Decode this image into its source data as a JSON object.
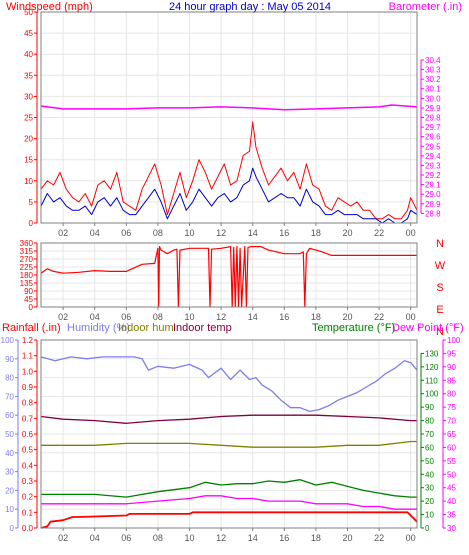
{
  "title": "24 hour graph day : May 05 2014",
  "x_ticks": [
    "02",
    "04",
    "06",
    "08",
    "10",
    "12",
    "14",
    "16",
    "18",
    "20",
    "22",
    "00"
  ],
  "colors": {
    "axis": "#808080",
    "grid": "#e6e6e6",
    "wind": "#ff0000",
    "gust_avg": "#0000cc",
    "barometer": "#ff00ff",
    "direction": "#ff0000",
    "rain": "#ff0000",
    "humidity": "#7d7dee",
    "indoor_hum": "#808000",
    "indoor_temp": "#800040",
    "temperature": "#008000",
    "dewpoint": "#ff00ff",
    "wind_dir_marker": "#ffff00"
  },
  "chart_data": [
    {
      "type": "line",
      "title": "24 hour graph day : May 05 2014",
      "x_range": [
        0.6,
        24.4
      ],
      "x_ticks": [
        2,
        4,
        6,
        8,
        10,
        12,
        14,
        16,
        18,
        20,
        22,
        24
      ],
      "left_axis": {
        "label": "Windspeed (mph)",
        "range": [
          0,
          50
        ],
        "ticks": [
          0,
          5,
          10,
          15,
          20,
          25,
          30,
          35,
          40,
          45,
          50
        ]
      },
      "right_axis": {
        "label": "Barometer (.in)",
        "range": [
          28.7,
          30.9
        ],
        "ticks": [
          28.8,
          28.9,
          29.0,
          29.1,
          29.2,
          29.3,
          29.4,
          29.5,
          29.6,
          29.7,
          29.8,
          29.9,
          30.0,
          30.1,
          30.2,
          30.3,
          30.4
        ]
      },
      "series": [
        {
          "name": "Windspeed",
          "axis": "left",
          "color": "#ff0000",
          "x": [
            0.6,
            1.0,
            1.4,
            1.8,
            2.2,
            2.6,
            3.0,
            3.4,
            3.8,
            4.2,
            4.6,
            5.0,
            5.4,
            5.8,
            6.2,
            6.6,
            7.0,
            7.4,
            7.8,
            8.2,
            8.6,
            9.0,
            9.4,
            9.8,
            10.2,
            10.6,
            11.0,
            11.4,
            11.8,
            12.2,
            12.6,
            13.0,
            13.4,
            13.8,
            14.0,
            14.2,
            14.6,
            15.0,
            15.4,
            15.8,
            16.2,
            16.6,
            17.0,
            17.4,
            17.8,
            18.2,
            18.6,
            19.0,
            19.4,
            19.8,
            20.2,
            20.6,
            21.0,
            21.4,
            21.8,
            22.2,
            22.6,
            23.0,
            23.4,
            23.8,
            24.0,
            24.4
          ],
          "y": [
            8,
            10,
            9,
            12,
            8,
            6,
            5,
            7,
            4,
            9,
            10,
            8,
            12,
            5,
            4,
            3,
            8,
            11,
            14,
            9,
            2,
            7,
            12,
            6,
            10,
            15,
            12,
            8,
            11,
            14,
            9,
            10,
            16,
            17,
            24,
            18,
            13,
            9,
            11,
            13,
            10,
            12,
            8,
            14,
            9,
            8,
            4,
            3,
            6,
            5,
            4,
            5,
            3,
            3,
            1,
            1,
            2,
            1,
            1,
            3,
            6,
            3
          ]
        },
        {
          "name": "Gust average",
          "axis": "left",
          "color": "#0000cc",
          "x": [
            0.6,
            1.0,
            1.4,
            1.8,
            2.2,
            2.6,
            3.0,
            3.4,
            3.8,
            4.2,
            4.6,
            5.0,
            5.4,
            5.8,
            6.2,
            6.6,
            7.0,
            7.4,
            7.8,
            8.2,
            8.6,
            9.0,
            9.4,
            9.8,
            10.2,
            10.6,
            11.0,
            11.4,
            11.8,
            12.2,
            12.6,
            13.0,
            13.4,
            13.8,
            14.0,
            14.2,
            14.6,
            15.0,
            15.4,
            15.8,
            16.2,
            16.6,
            17.0,
            17.4,
            17.8,
            18.2,
            18.6,
            19.0,
            19.4,
            19.8,
            20.2,
            20.6,
            21.0,
            21.4,
            21.8,
            22.2,
            22.6,
            23.0,
            23.4,
            23.8,
            24.0,
            24.4
          ],
          "y": [
            4,
            7,
            5,
            6,
            4,
            3,
            3,
            4,
            2,
            5,
            6,
            4,
            6,
            3,
            2,
            2,
            4,
            6,
            8,
            5,
            1,
            4,
            7,
            3,
            5,
            8,
            6,
            4,
            6,
            7,
            5,
            6,
            9,
            10,
            13,
            11,
            8,
            5,
            6,
            7,
            6,
            6,
            4,
            8,
            5,
            4,
            2,
            2,
            3,
            2,
            2,
            2,
            1,
            1,
            1,
            0,
            1,
            0,
            0,
            1,
            3,
            2
          ]
        },
        {
          "name": "Barometer",
          "axis": "right",
          "color": "#ff00ff",
          "x": [
            0.6,
            2,
            4,
            6,
            8,
            10,
            12,
            14,
            16,
            18,
            20,
            22,
            22.8,
            24.4
          ],
          "y": [
            29.92,
            29.89,
            29.89,
            29.89,
            29.9,
            29.9,
            29.91,
            29.9,
            29.88,
            29.89,
            29.9,
            29.91,
            29.93,
            29.91
          ]
        }
      ]
    },
    {
      "type": "line",
      "x_range": [
        0.6,
        24.4
      ],
      "x_ticks": [
        2,
        4,
        6,
        8,
        10,
        12,
        14,
        16,
        18,
        20,
        22,
        24
      ],
      "left_axis": {
        "label": "",
        "range": [
          0,
          360
        ],
        "ticks": [
          0,
          45,
          90,
          135,
          180,
          225,
          270,
          315,
          360
        ]
      },
      "right_axis": {
        "label": "",
        "range": [
          0,
          360
        ],
        "ticks": [
          360,
          270,
          180,
          90,
          0
        ],
        "tick_labels": [
          "N",
          "W",
          "S",
          "E",
          "N"
        ]
      },
      "series": [
        {
          "name": "Wind direction",
          "color": "#ff0000",
          "x": [
            0.6,
            1.0,
            1.4,
            2.0,
            3.0,
            4.0,
            5.0,
            6.0,
            7.0,
            7.8,
            8.0,
            8.05,
            8.1,
            8.2,
            8.6,
            9.0,
            9.2,
            9.3,
            9.4,
            10.0,
            11.0,
            11.2,
            11.3,
            11.4,
            12.0,
            12.6,
            12.7,
            12.8,
            12.9,
            13.0,
            13.1,
            13.2,
            13.3,
            13.5,
            13.6,
            13.7,
            13.9,
            14.5,
            15.0,
            16.0,
            17.0,
            17.2,
            17.3,
            17.4,
            17.6,
            18.0,
            18.4,
            19.0,
            24.4
          ],
          "y": [
            190,
            215,
            200,
            190,
            195,
            205,
            200,
            200,
            240,
            245,
            330,
            0,
            340,
            320,
            300,
            320,
            325,
            0,
            320,
            330,
            330,
            330,
            0,
            325,
            330,
            340,
            0,
            335,
            0,
            340,
            0,
            330,
            0,
            340,
            0,
            335,
            340,
            340,
            320,
            300,
            300,
            310,
            0,
            300,
            330,
            320,
            310,
            290,
            290
          ]
        }
      ]
    },
    {
      "type": "line",
      "x_range": [
        0.6,
        24.4
      ],
      "x_ticks": [
        2,
        4,
        6,
        8,
        10,
        12,
        14,
        16,
        18,
        20,
        22,
        24
      ],
      "legend": [
        "Rainfall (.in)",
        "Humidity (%)",
        "Indoor hum",
        "Indoor temp",
        "Temperature (°F)",
        "Dew Point (°F)"
      ],
      "axes": {
        "rainfall": {
          "label": "Rainfall (.in)",
          "range": [
            0,
            1.2
          ],
          "ticks": [
            0,
            0.1,
            0.2,
            0.3,
            0.4,
            0.5,
            0.6,
            0.7,
            0.8,
            0.9,
            1.0,
            1.1,
            1.2
          ]
        },
        "humidity": {
          "label": "Humidity (%)",
          "range": [
            0,
            100
          ],
          "ticks": [
            0,
            10,
            20,
            30,
            40,
            50,
            60,
            70,
            80,
            90,
            100
          ]
        },
        "temperature": {
          "label": "Temperature (°F)",
          "range": [
            0,
            140
          ],
          "ticks": [
            0,
            10,
            20,
            30,
            40,
            50,
            60,
            70,
            80,
            90,
            100,
            110,
            120,
            130
          ]
        },
        "dewpoint": {
          "label": "Dew Point (°F)",
          "range": [
            30,
            100
          ],
          "ticks": [
            30,
            35,
            40,
            45,
            50,
            55,
            60,
            65,
            70,
            75,
            80,
            85,
            90,
            95,
            100
          ]
        }
      },
      "series": [
        {
          "name": "Rainfall",
          "axis": "rainfall",
          "color": "#ff0000",
          "x": [
            0.6,
            1.0,
            1.2,
            2.0,
            2.6,
            3.0,
            6.0,
            6.2,
            10.0,
            10.2,
            14.0,
            23.8,
            24.0,
            24.4
          ],
          "y": [
            0,
            0.01,
            0.04,
            0.05,
            0.07,
            0.07,
            0.08,
            0.09,
            0.09,
            0.1,
            0.1,
            0.1,
            0.08,
            0.04
          ]
        },
        {
          "name": "Humidity",
          "axis": "humidity",
          "color": "#7d7dee",
          "x": [
            0.6,
            1.5,
            2.5,
            3.5,
            4.5,
            5.5,
            6.5,
            7.0,
            7.4,
            8.0,
            9.0,
            10.0,
            10.8,
            11.2,
            12.0,
            12.6,
            13.2,
            13.8,
            14.2,
            14.6,
            15.2,
            15.8,
            16.4,
            17.0,
            17.6,
            18.2,
            18.8,
            19.4,
            20.0,
            20.6,
            21.2,
            21.8,
            22.4,
            23.0,
            23.6,
            24.0,
            24.4
          ],
          "y": [
            91,
            89,
            91,
            90,
            91,
            91,
            91,
            90,
            84,
            86,
            85,
            87,
            84,
            80,
            85,
            79,
            84,
            79,
            80,
            76,
            73,
            68,
            64,
            64,
            62,
            63,
            65,
            68,
            70,
            72,
            75,
            78,
            82,
            85,
            89,
            88,
            84
          ]
        },
        {
          "name": "Indoor hum",
          "axis": "humidity",
          "color": "#808000",
          "x": [
            0.6,
            2,
            4,
            6,
            8,
            10,
            12,
            14,
            16,
            18,
            20,
            22,
            24,
            24.4
          ],
          "y": [
            44,
            44,
            44,
            45,
            45,
            45,
            44,
            43,
            43,
            43,
            44,
            44,
            46,
            46
          ]
        },
        {
          "name": "Indoor temp",
          "axis": "temperature",
          "color": "#800040",
          "x": [
            0.6,
            2,
            4,
            6,
            8,
            10,
            12,
            14,
            16,
            18,
            20,
            22,
            24,
            24.4
          ],
          "y": [
            83,
            81,
            80,
            78,
            80,
            81,
            83,
            84,
            84,
            84,
            83,
            82,
            80,
            80
          ]
        },
        {
          "name": "Temperature",
          "axis": "temperature",
          "color": "#008000",
          "x": [
            0.6,
            2,
            4,
            6,
            8,
            10,
            11,
            12,
            13,
            14,
            15,
            16,
            17,
            18,
            19,
            20,
            21,
            22,
            23,
            24,
            24.4
          ],
          "y": [
            25,
            25,
            25,
            23,
            27,
            30,
            34,
            32,
            33,
            33,
            35,
            34,
            36,
            32,
            34,
            31,
            28,
            26,
            24,
            23,
            23
          ]
        },
        {
          "name": "Dew Point",
          "axis": "dewpoint",
          "color": "#ff00ff",
          "x": [
            0.6,
            2,
            4,
            6,
            8,
            10,
            11,
            12,
            13,
            14,
            15,
            16,
            17,
            18,
            19,
            20,
            21,
            22,
            23,
            24,
            24.4
          ],
          "y": [
            39,
            39,
            39,
            39,
            40,
            41,
            42,
            42,
            41,
            41,
            40,
            40,
            40,
            39,
            39,
            39,
            38,
            38,
            37,
            37,
            37
          ]
        }
      ]
    }
  ]
}
